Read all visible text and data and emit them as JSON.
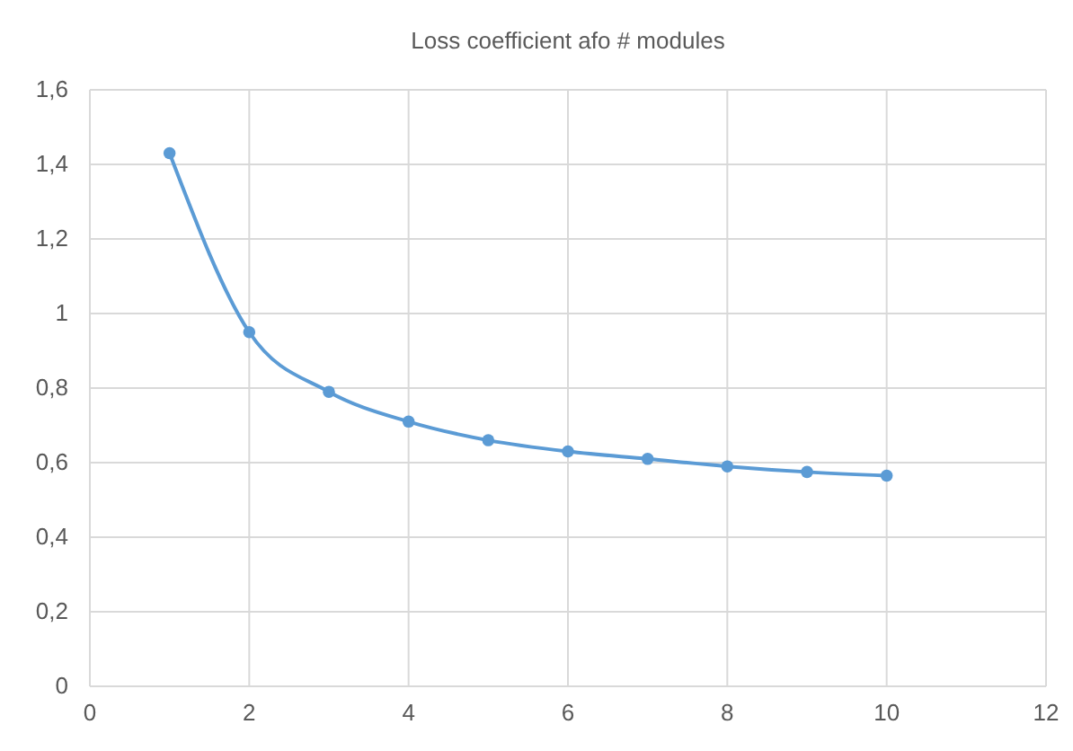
{
  "chart_data": {
    "type": "line",
    "title": "Loss coefficient afo # modules",
    "x": [
      1,
      2,
      3,
      4,
      5,
      6,
      7,
      8,
      9,
      10
    ],
    "series": [
      {
        "color": "#5b9bd5",
        "values": [
          1.43,
          0.95,
          0.79,
          0.71,
          0.66,
          0.63,
          0.61,
          0.59,
          0.575,
          0.565
        ]
      }
    ],
    "xlim": [
      0,
      12
    ],
    "xticks": [
      0,
      2,
      4,
      6,
      8,
      10,
      12
    ],
    "ylim": [
      0,
      1.6
    ],
    "yticks": [
      {
        "value": 0,
        "label": "0"
      },
      {
        "value": 0.2,
        "label": "0,2"
      },
      {
        "value": 0.4,
        "label": "0,4"
      },
      {
        "value": 0.6,
        "label": "0,6"
      },
      {
        "value": 0.8,
        "label": "0,8"
      },
      {
        "value": 1,
        "label": "1"
      },
      {
        "value": 1.2,
        "label": "1,2"
      },
      {
        "value": 1.4,
        "label": "1,4"
      },
      {
        "value": 1.6,
        "label": "1,6"
      }
    ],
    "grid": true,
    "marker": "circle",
    "line_style": "solid"
  }
}
